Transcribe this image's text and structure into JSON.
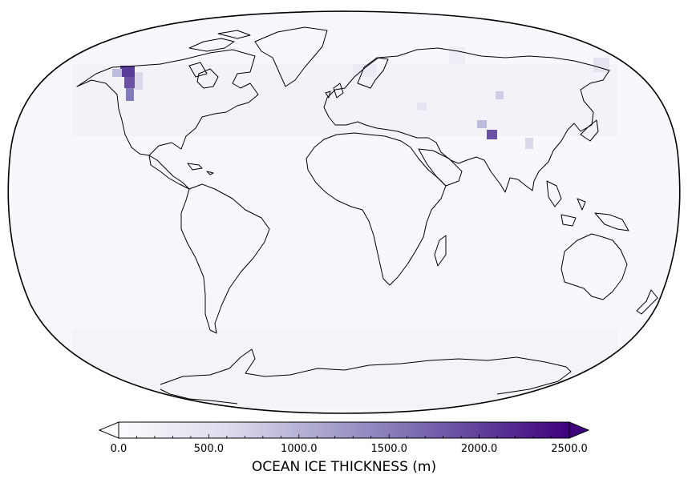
{
  "map": {
    "projection": "robinson-like",
    "variable_label": "OCEAN ICE THICKNESS (m)",
    "colormap": "Purples",
    "colors": {
      "low": "#fcfbfd",
      "mid": "#9e9ac8",
      "high": "#3f007d",
      "coastline": "#000000",
      "under_arrow": "#ffffff",
      "over_arrow": "#3f007d"
    }
  },
  "colorbar": {
    "min": 0,
    "max": 2500,
    "tick_labels": [
      "0.0",
      "500.0",
      "1000.0",
      "1500.0",
      "2000.0",
      "2500.0"
    ],
    "tick_values": [
      0,
      500,
      1000,
      1500,
      2000,
      2500
    ],
    "extend": "both"
  }
}
